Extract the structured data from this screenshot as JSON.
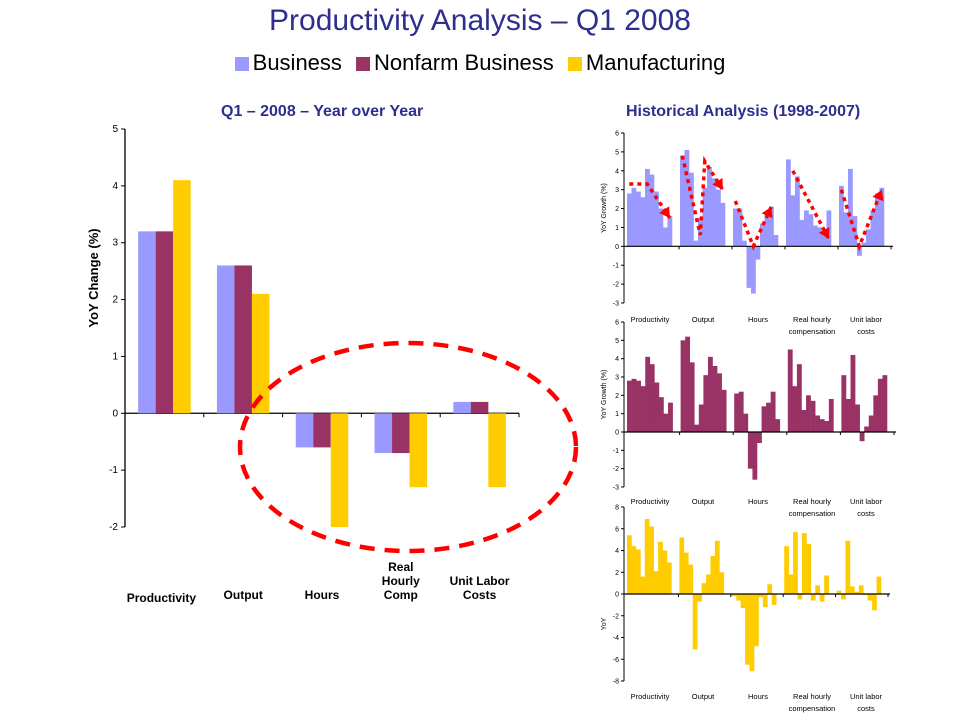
{
  "header": {
    "title": "Productivity Analysis – Q1 2008",
    "legend": [
      {
        "label": "Business",
        "color": "#9999ff"
      },
      {
        "label": "Nonfarm Business",
        "color": "#993366"
      },
      {
        "label": "Manufacturing",
        "color": "#ffcc00"
      }
    ]
  },
  "panels": {
    "left_title": "Q1 – 2008 – Year over Year",
    "right_title": "Historical Analysis (1998-2007)"
  },
  "chart_data": [
    {
      "type": "bar",
      "title": "Q1 – 2008 – Year over Year",
      "ylabel": "YoY Change (%)",
      "xlabel": "",
      "ylim": [
        -2,
        5
      ],
      "yticks": [
        "-2",
        "-1",
        "0",
        "1",
        "2",
        "3",
        "4",
        "5"
      ],
      "categories": [
        "Productivity",
        "Output",
        "Hours",
        "Real Hourly Comp",
        "Unit Labor Costs"
      ],
      "category_lines": [
        [
          "Productivity"
        ],
        [
          "Output"
        ],
        [
          "Hours"
        ],
        [
          "Real",
          "Hourly",
          "Comp"
        ],
        [
          "Unit Labor",
          "Costs"
        ]
      ],
      "series": [
        {
          "name": "Business",
          "color": "#9999ff",
          "values": [
            3.2,
            2.6,
            -0.6,
            -0.7,
            0.2
          ]
        },
        {
          "name": "Nonfarm Business",
          "color": "#993366",
          "values": [
            3.2,
            2.6,
            -0.6,
            -0.7,
            0.2
          ]
        },
        {
          "name": "Manufacturing",
          "color": "#ffcc00",
          "values": [
            4.1,
            2.1,
            -2.0,
            -1.3,
            -1.3
          ]
        }
      ],
      "annotation": "dashed red ellipse highlighting Hours, Real Hourly Comp and Unit Labor Costs",
      "grid": false
    },
    {
      "type": "bar",
      "title": "Historical Analysis (1998-2007) – Business",
      "ylabel": "YoY Growth (%)",
      "ylim": [
        -3,
        6
      ],
      "yticks": [
        "-3",
        "-2",
        "-1",
        "0",
        "1",
        "2",
        "3",
        "4",
        "5",
        "6"
      ],
      "categories": [
        "Productivity",
        "Output",
        "Hours",
        "Real hourly compensation",
        "Unit labor costs"
      ],
      "category_lines": [
        [
          "Productivity"
        ],
        [
          "Output"
        ],
        [
          "Hours"
        ],
        [
          "Real hourly",
          "compensation"
        ],
        [
          "Unit labor",
          "costs"
        ]
      ],
      "color": "#9999ff",
      "groups": [
        [
          2.8,
          3.1,
          2.9,
          2.6,
          4.1,
          3.8,
          2.9,
          2.0,
          1.0,
          1.6
        ],
        [
          4.8,
          5.1,
          3.9,
          0.3,
          1.5,
          3.1,
          4.2,
          3.6,
          3.0,
          2.3
        ],
        [
          2.0,
          2.0,
          0.3,
          -2.2,
          -2.5,
          -0.7,
          1.2,
          1.7,
          2.1,
          0.6
        ],
        [
          4.6,
          2.7,
          3.7,
          1.4,
          1.9,
          1.7,
          1.1,
          1.0,
          0.6,
          1.9
        ],
        [
          3.2,
          1.8,
          4.1,
          1.6,
          -0.5,
          0.2,
          0.9,
          1.9,
          2.8,
          3.1
        ]
      ],
      "trend_arrows": [
        {
          "group": 0,
          "points": [
            [
              0,
              3.3
            ],
            [
              4,
              3.3
            ],
            [
              9,
              1.5
            ]
          ]
        },
        {
          "group": 1,
          "points": [
            [
              0,
              4.8
            ],
            [
              4,
              0.6
            ],
            [
              5,
              4.5
            ],
            [
              9,
              3.0
            ]
          ]
        },
        {
          "group": 2,
          "points": [
            [
              0,
              2.4
            ],
            [
              4,
              0.0
            ],
            [
              8,
              2.1
            ]
          ]
        },
        {
          "group": 3,
          "points": [
            [
              1,
              4.0
            ],
            [
              9,
              0.4
            ]
          ]
        },
        {
          "group": 4,
          "points": [
            [
              0,
              3.0
            ],
            [
              4,
              0.0
            ],
            [
              9,
              3.0
            ]
          ]
        }
      ],
      "grid": false
    },
    {
      "type": "bar",
      "title": "Historical Analysis (1998-2007) – Nonfarm Business",
      "ylabel": "YoY Growth (%)",
      "ylim": [
        -3,
        6
      ],
      "yticks": [
        "-3",
        "-2",
        "-1",
        "0",
        "1",
        "2",
        "3",
        "4",
        "5",
        "6"
      ],
      "categories": [
        "Productivity",
        "Output",
        "Hours",
        "Real hourly compensation",
        "Unit labor costs"
      ],
      "category_lines": [
        [
          "Productivity"
        ],
        [
          "Output"
        ],
        [
          "Hours"
        ],
        [
          "Real hourly",
          "compensation"
        ],
        [
          "Unit labor",
          "costs"
        ]
      ],
      "color": "#993366",
      "groups": [
        [
          2.8,
          2.9,
          2.8,
          2.5,
          4.1,
          3.7,
          2.7,
          1.9,
          1.0,
          1.6
        ],
        [
          5.0,
          5.2,
          3.8,
          0.4,
          1.5,
          3.1,
          4.1,
          3.6,
          3.2,
          2.3
        ],
        [
          2.1,
          2.2,
          1.0,
          -2.0,
          -2.6,
          -0.6,
          1.4,
          1.6,
          2.2,
          0.7
        ],
        [
          4.5,
          2.5,
          3.7,
          1.2,
          2.0,
          1.7,
          0.9,
          0.7,
          0.6,
          1.8
        ],
        [
          3.1,
          1.8,
          4.2,
          1.5,
          -0.5,
          0.3,
          0.9,
          2.0,
          2.9,
          3.1
        ]
      ],
      "grid": false
    },
    {
      "type": "bar",
      "title": "Historical Analysis (1998-2007) – Manufacturing",
      "ylabel": "YoY",
      "ylim": [
        -8,
        8
      ],
      "yticks": [
        "-8",
        "-6",
        "-4",
        "-2",
        "0",
        "2",
        "4",
        "6",
        "8"
      ],
      "categories": [
        "Productivity",
        "Output",
        "Hours",
        "Real hourly compensation",
        "Unit labor costs"
      ],
      "category_lines": [
        [
          "Productivity"
        ],
        [
          "Output"
        ],
        [
          "Hours"
        ],
        [
          "Real hourly",
          "compensation"
        ],
        [
          "Unit labor",
          "costs"
        ]
      ],
      "color": "#ffcc00",
      "groups": [
        [
          5.4,
          4.4,
          4.1,
          1.6,
          6.9,
          6.2,
          2.1,
          4.8,
          4.0,
          2.9
        ],
        [
          5.2,
          3.8,
          2.7,
          -5.1,
          -0.7,
          1.0,
          1.8,
          3.5,
          4.9,
          2.0
        ],
        [
          -0.2,
          -0.6,
          -1.3,
          -6.5,
          -7.1,
          -4.8,
          -0.3,
          -1.2,
          0.9,
          -1.0
        ],
        [
          4.4,
          1.8,
          5.7,
          -0.5,
          5.6,
          4.6,
          -0.6,
          0.8,
          -0.7,
          1.7
        ],
        [
          0.3,
          -0.5,
          4.9,
          0.7,
          0.2,
          0.8,
          -0.1,
          -0.6,
          -1.5,
          1.6
        ]
      ],
      "grid": false
    }
  ]
}
